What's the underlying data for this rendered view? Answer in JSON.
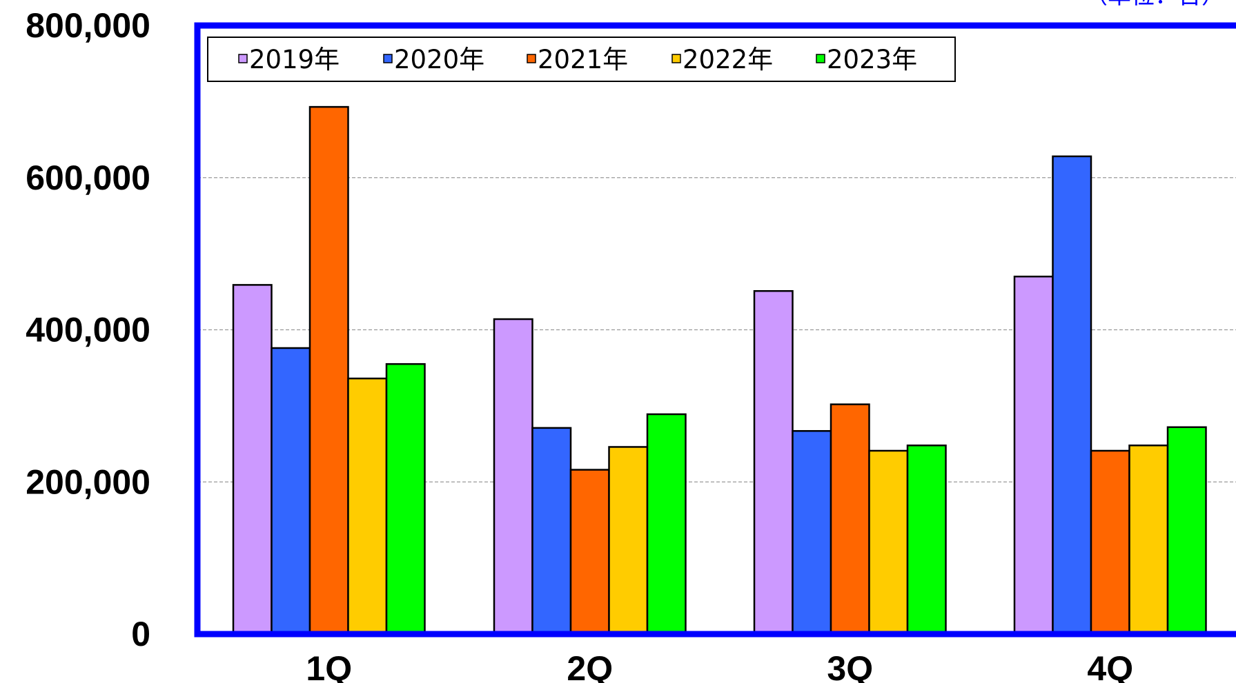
{
  "chart_data": {
    "type": "bar",
    "unit_label": "（単位：台）",
    "categories": [
      "1Q",
      "2Q",
      "3Q",
      "4Q"
    ],
    "y_ticks": [
      "0",
      "200,000",
      "400,000",
      "600,000",
      "800,000"
    ],
    "ylim": [
      0,
      800000
    ],
    "grid": true,
    "legend_position": "top-left",
    "series": [
      {
        "name": "2019年",
        "color": "#cc99ff",
        "values": [
          459000,
          414000,
          451000,
          470000
        ]
      },
      {
        "name": "2020年",
        "color": "#3366ff",
        "values": [
          376000,
          271000,
          267000,
          628000
        ]
      },
      {
        "name": "2021年",
        "color": "#ff6600",
        "values": [
          693000,
          216000,
          302000,
          241000
        ]
      },
      {
        "name": "2022年",
        "color": "#ffcc00",
        "values": [
          336000,
          246000,
          241000,
          248000
        ]
      },
      {
        "name": "2023年",
        "color": "#00ff00",
        "values": [
          355000,
          289000,
          248000,
          272000
        ]
      }
    ]
  },
  "colors": {
    "frame": "#0000ff",
    "gridline": "#999999",
    "bar_outline": "#000000"
  }
}
